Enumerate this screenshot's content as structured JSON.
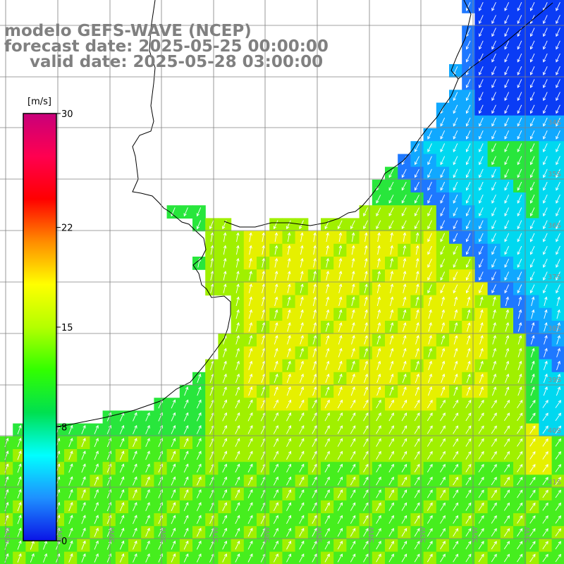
{
  "title": {
    "line1": "modelo GEFS-WAVE (NCEP)",
    "line2": "forecast date: 2025-05-25 00:00:00",
    "line3": "valid date: 2025-05-28 03:00:00"
  },
  "colorbar": {
    "unit": "[m/s]",
    "ticks": [
      "30",
      "22",
      "15",
      "8",
      "0"
    ],
    "tick_values": [
      30,
      22,
      15,
      8,
      0
    ],
    "colors": [
      "#0a14e6",
      "#1e90ff",
      "#00ffff",
      "#00e050",
      "#32ff00",
      "#b4ff00",
      "#ffff00",
      "#ff8c00",
      "#ff0000",
      "#ff0050",
      "#c8007a"
    ]
  },
  "map": {
    "lat_labels": [
      "34S",
      "35S",
      "36S",
      "37S",
      "38S",
      "39S",
      "40S",
      "41S"
    ],
    "lon_labels": [
      "61W",
      "60W",
      "59W",
      "58W",
      "57W",
      "56W",
      "55W",
      "54W",
      "53W",
      "52W",
      "51W"
    ],
    "land_color": "#ffffff",
    "grid_color": "#808080",
    "arrow_color": "#ffffff",
    "coast_color": "#000000",
    "field_colors": {
      "blue": "#0a3cf5",
      "mid_blue": "#1e78ff",
      "light_blue": "#10a8ff",
      "cyan": "#00d8f0",
      "green": "#28e63c",
      "green2": "#46ee1e",
      "ygreen": "#a0f000",
      "yellow": "#e6f000"
    }
  }
}
